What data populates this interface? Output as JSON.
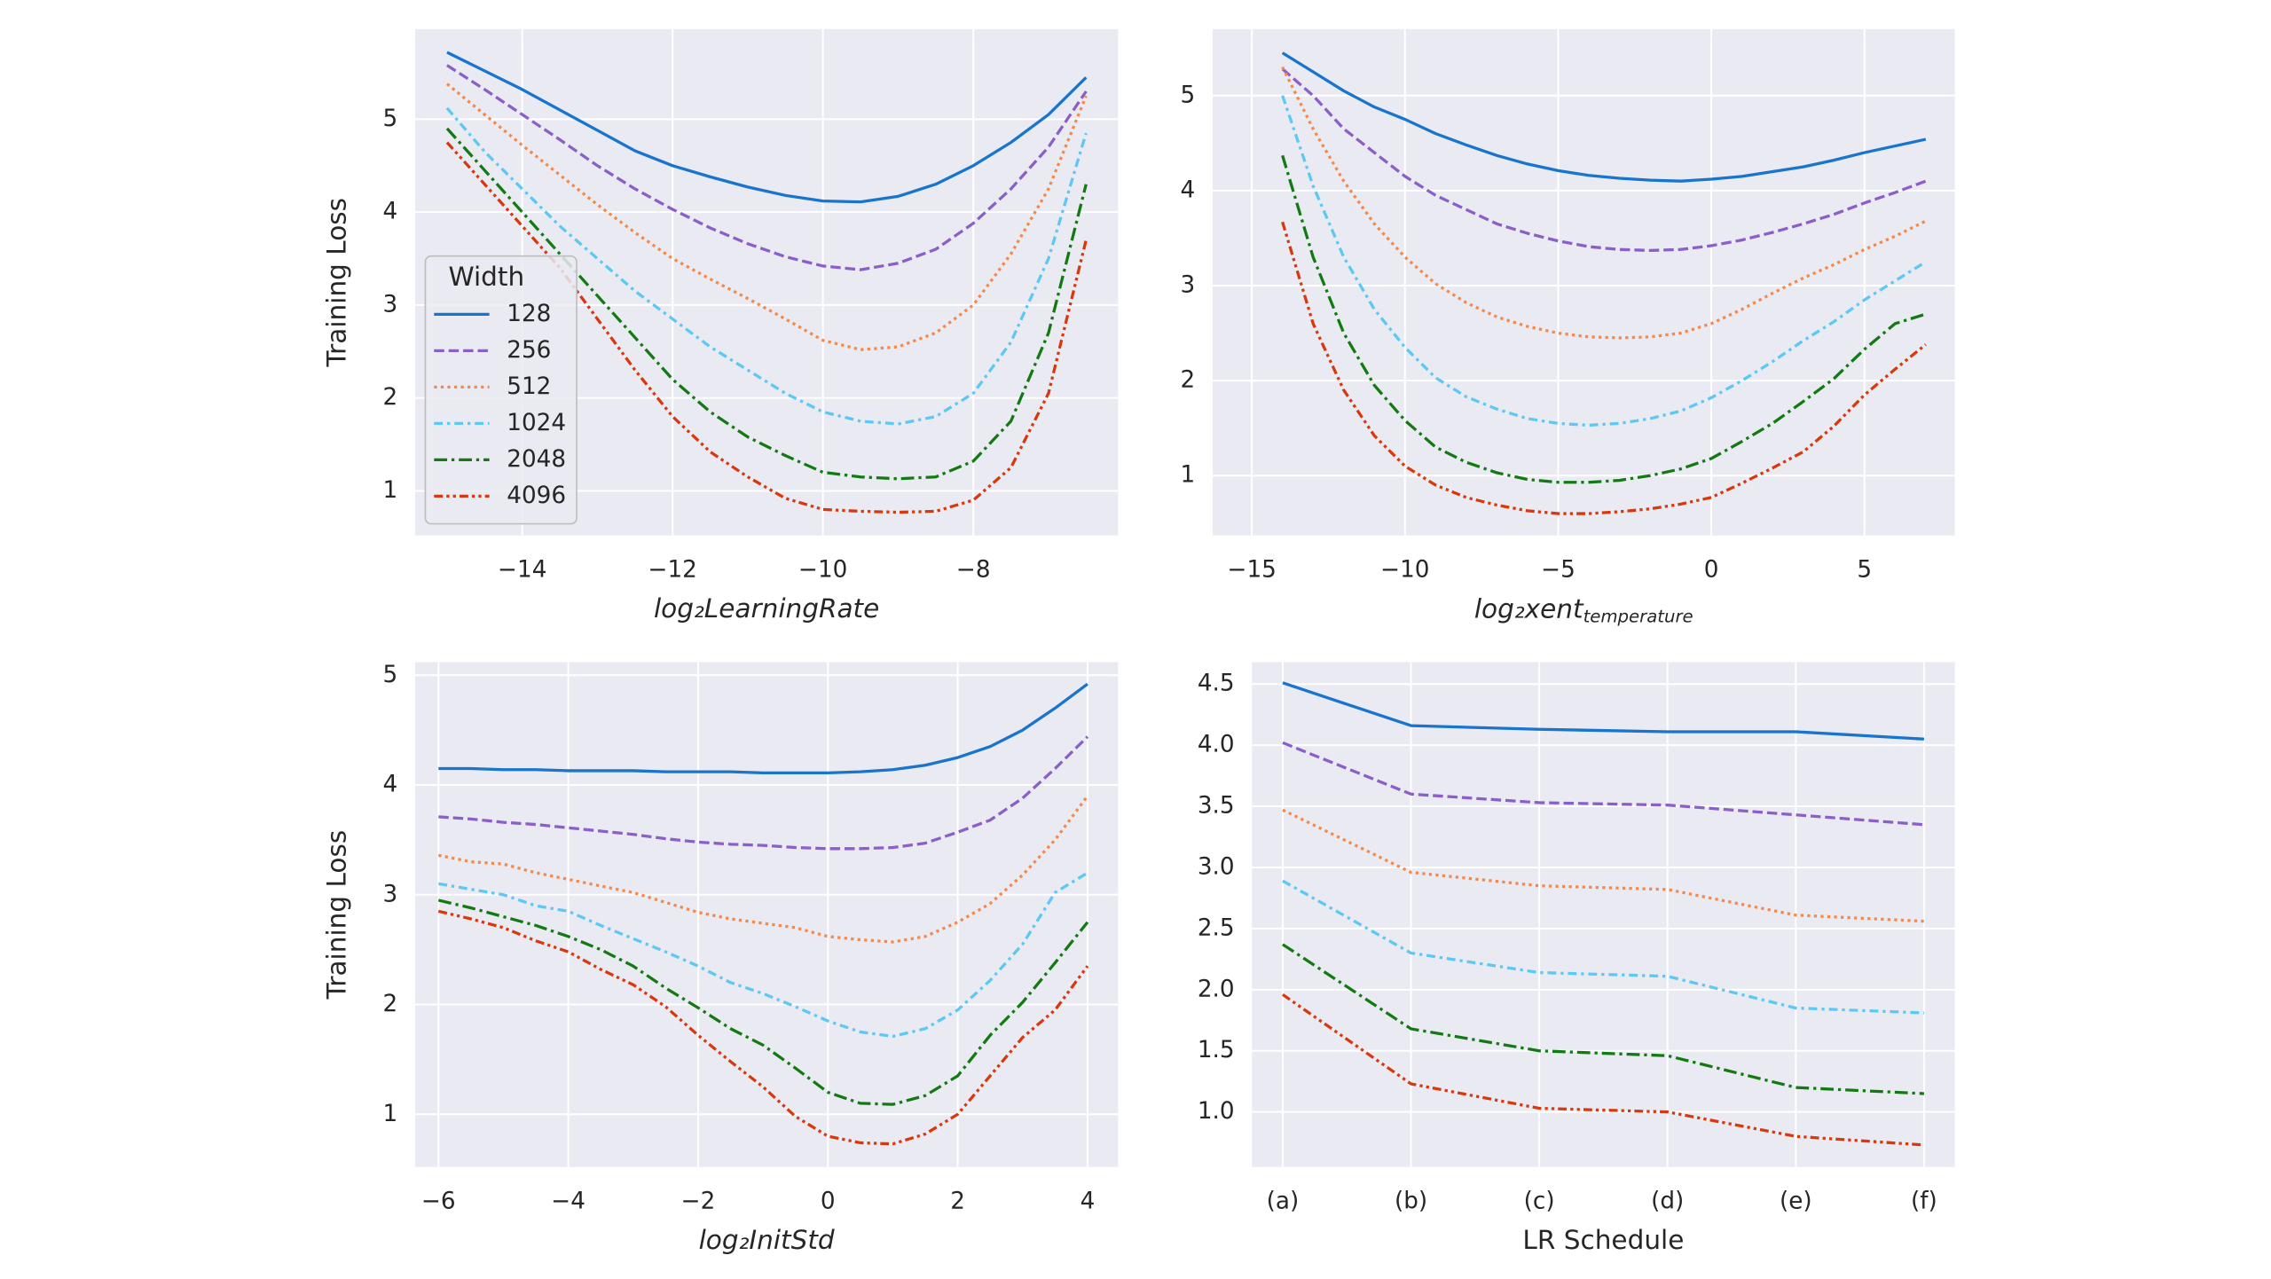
{
  "chart_data": [
    {
      "type": "line",
      "y_label": "Training Loss",
      "x_label": "log₂LearningRate",
      "x": [
        -15,
        -14.5,
        -14,
        -13.5,
        -13,
        -12.5,
        -12,
        -11.5,
        -11,
        -10.5,
        -10,
        -9.5,
        -9,
        -8.5,
        -8,
        -7.5,
        -7,
        -6.5
      ],
      "series": [
        {
          "name": "128",
          "color": "#1874cd",
          "dash": "solid",
          "values": [
            5.72,
            5.52,
            5.32,
            5.1,
            4.88,
            4.66,
            4.5,
            4.38,
            4.27,
            4.18,
            4.12,
            4.11,
            4.17,
            4.3,
            4.5,
            4.75,
            5.05,
            5.45
          ]
        },
        {
          "name": "256",
          "color": "#8a5fc9",
          "dash": "dashed",
          "values": [
            5.58,
            5.32,
            5.05,
            4.78,
            4.5,
            4.25,
            4.03,
            3.83,
            3.66,
            3.52,
            3.42,
            3.38,
            3.45,
            3.6,
            3.88,
            4.25,
            4.7,
            5.3
          ]
        },
        {
          "name": "512",
          "color": "#f5894a",
          "dash": "dotted",
          "values": [
            5.38,
            5.05,
            4.72,
            4.4,
            4.08,
            3.78,
            3.5,
            3.28,
            3.07,
            2.85,
            2.62,
            2.52,
            2.55,
            2.7,
            3.0,
            3.55,
            4.25,
            5.25
          ]
        },
        {
          "name": "1024",
          "color": "#5bc8f5",
          "dash": "dashdot",
          "values": [
            5.12,
            4.65,
            4.25,
            3.85,
            3.5,
            3.15,
            2.85,
            2.55,
            2.3,
            2.05,
            1.85,
            1.75,
            1.72,
            1.8,
            2.05,
            2.6,
            3.5,
            4.85
          ]
        },
        {
          "name": "2048",
          "color": "#137a13",
          "dash": "longdashdot",
          "values": [
            4.9,
            4.45,
            4.0,
            3.55,
            3.1,
            2.65,
            2.2,
            1.85,
            1.58,
            1.38,
            1.2,
            1.15,
            1.13,
            1.15,
            1.32,
            1.75,
            2.7,
            4.3
          ]
        },
        {
          "name": "4096",
          "color": "#d9380d",
          "dash": "dashdotdot",
          "values": [
            4.75,
            4.3,
            3.85,
            3.4,
            2.85,
            2.3,
            1.8,
            1.42,
            1.15,
            0.92,
            0.8,
            0.78,
            0.77,
            0.78,
            0.9,
            1.25,
            2.05,
            3.7
          ]
        }
      ],
      "xlim": [
        -15.425,
        -6.075
      ],
      "ylim": [
        0.52,
        5.97
      ],
      "xticks": [
        {
          "value": -14,
          "label": "−14"
        },
        {
          "value": -12,
          "label": "−12"
        },
        {
          "value": -10,
          "label": "−10"
        },
        {
          "value": -8,
          "label": "−8"
        }
      ],
      "yticks": [
        1,
        2,
        3,
        4,
        5
      ],
      "grid": true,
      "legend": "lower left",
      "legend_title": "Width"
    },
    {
      "type": "line",
      "x_label": {
        "text": "log₂xent",
        "subscript": "temperature"
      },
      "x": [
        -14,
        -13,
        -12,
        -11,
        -10,
        -9,
        -8,
        -7,
        -6,
        -5,
        -4,
        -3,
        -2,
        -1,
        0,
        1,
        2,
        3,
        4,
        5,
        6,
        7
      ],
      "series": [
        {
          "color": "#1874cd",
          "dash": "solid",
          "values": [
            5.45,
            5.25,
            5.05,
            4.88,
            4.75,
            4.6,
            4.48,
            4.37,
            4.28,
            4.21,
            4.16,
            4.13,
            4.11,
            4.1,
            4.12,
            4.15,
            4.2,
            4.25,
            4.32,
            4.4,
            4.47,
            4.54
          ]
        },
        {
          "color": "#8a5fc9",
          "dash": "dashed",
          "values": [
            5.28,
            5.0,
            4.65,
            4.4,
            4.15,
            3.95,
            3.8,
            3.65,
            3.55,
            3.47,
            3.41,
            3.38,
            3.37,
            3.38,
            3.42,
            3.48,
            3.56,
            3.65,
            3.75,
            3.87,
            3.98,
            4.1
          ]
        },
        {
          "color": "#f5894a",
          "dash": "dotted",
          "values": [
            5.3,
            4.65,
            4.1,
            3.65,
            3.3,
            3.02,
            2.82,
            2.67,
            2.57,
            2.5,
            2.46,
            2.45,
            2.46,
            2.5,
            2.6,
            2.75,
            2.92,
            3.08,
            3.22,
            3.38,
            3.52,
            3.68
          ]
        },
        {
          "color": "#5bc8f5",
          "dash": "dashdot",
          "values": [
            5.0,
            4.05,
            3.3,
            2.75,
            2.35,
            2.03,
            1.83,
            1.7,
            1.6,
            1.55,
            1.53,
            1.55,
            1.6,
            1.68,
            1.82,
            2.0,
            2.2,
            2.42,
            2.62,
            2.85,
            3.05,
            3.25
          ]
        },
        {
          "color": "#137a13",
          "dash": "longdashdot",
          "values": [
            4.37,
            3.3,
            2.5,
            1.95,
            1.58,
            1.3,
            1.14,
            1.03,
            0.96,
            0.93,
            0.93,
            0.95,
            1.0,
            1.07,
            1.18,
            1.36,
            1.55,
            1.78,
            2.02,
            2.33,
            2.6,
            2.7
          ]
        },
        {
          "color": "#d9380d",
          "dash": "dashdotdot",
          "values": [
            3.67,
            2.6,
            1.9,
            1.42,
            1.1,
            0.9,
            0.77,
            0.69,
            0.63,
            0.6,
            0.6,
            0.62,
            0.65,
            0.7,
            0.77,
            0.92,
            1.08,
            1.25,
            1.52,
            1.85,
            2.12,
            2.38
          ]
        }
      ],
      "xlim": [
        -16.28,
        7.95
      ],
      "ylim": [
        0.37,
        5.7
      ],
      "xticks": [
        {
          "value": -15,
          "label": "−15"
        },
        {
          "value": -10,
          "label": "−10"
        },
        {
          "value": -5,
          "label": "−5"
        },
        0,
        5
      ],
      "yticks": [
        1,
        2,
        3,
        4,
        5
      ],
      "grid": true
    },
    {
      "type": "line",
      "y_label": "Training Loss",
      "x_label": "log₂InitStd",
      "x": [
        -6,
        -5.5,
        -5,
        -4.5,
        -4,
        -3.5,
        -3,
        -2.5,
        -2,
        -1.5,
        -1,
        -0.5,
        0,
        0.5,
        1,
        1.5,
        2,
        2.5,
        3,
        3.5,
        4
      ],
      "series": [
        {
          "color": "#1874cd",
          "dash": "solid",
          "values": [
            4.15,
            4.15,
            4.14,
            4.14,
            4.13,
            4.13,
            4.13,
            4.12,
            4.12,
            4.12,
            4.11,
            4.11,
            4.11,
            4.12,
            4.14,
            4.18,
            4.25,
            4.35,
            4.5,
            4.7,
            4.92
          ]
        },
        {
          "color": "#8a5fc9",
          "dash": "dashed",
          "values": [
            3.71,
            3.69,
            3.66,
            3.64,
            3.61,
            3.58,
            3.55,
            3.51,
            3.48,
            3.46,
            3.45,
            3.43,
            3.42,
            3.42,
            3.43,
            3.47,
            3.57,
            3.68,
            3.88,
            4.15,
            4.44
          ]
        },
        {
          "color": "#f5894a",
          "dash": "dotted",
          "values": [
            3.36,
            3.3,
            3.28,
            3.2,
            3.14,
            3.08,
            3.02,
            2.93,
            2.84,
            2.78,
            2.74,
            2.7,
            2.62,
            2.59,
            2.57,
            2.62,
            2.75,
            2.92,
            3.18,
            3.5,
            3.9
          ]
        },
        {
          "color": "#5bc8f5",
          "dash": "dashdot",
          "values": [
            3.1,
            3.05,
            3.0,
            2.9,
            2.85,
            2.72,
            2.6,
            2.48,
            2.35,
            2.2,
            2.1,
            1.98,
            1.85,
            1.75,
            1.71,
            1.78,
            1.95,
            2.22,
            2.55,
            3.02,
            3.2
          ]
        },
        {
          "color": "#137a13",
          "dash": "longdashdot",
          "values": [
            2.95,
            2.88,
            2.8,
            2.72,
            2.62,
            2.5,
            2.35,
            2.15,
            1.97,
            1.78,
            1.63,
            1.42,
            1.2,
            1.1,
            1.09,
            1.17,
            1.35,
            1.72,
            2.02,
            2.38,
            2.75
          ]
        },
        {
          "color": "#d9380d",
          "dash": "dashdotdot",
          "values": [
            2.85,
            2.78,
            2.7,
            2.58,
            2.48,
            2.32,
            2.18,
            1.98,
            1.72,
            1.48,
            1.25,
            0.98,
            0.8,
            0.74,
            0.73,
            0.82,
            1.0,
            1.35,
            1.7,
            1.95,
            2.35
          ]
        }
      ],
      "xlim": [
        -6.36,
        4.47
      ],
      "ylim": [
        0.52,
        5.12
      ],
      "xticks": [
        {
          "value": -6,
          "label": "−6"
        },
        {
          "value": -4,
          "label": "−4"
        },
        {
          "value": -2,
          "label": "−2"
        },
        0,
        2,
        4
      ],
      "yticks": [
        1,
        2,
        3,
        4,
        5
      ],
      "grid": true
    },
    {
      "type": "line",
      "x_label": "LR Schedule",
      "categories": [
        "(a)",
        "(b)",
        "(c)",
        "(d)",
        "(e)",
        "(f)"
      ],
      "series": [
        {
          "color": "#1874cd",
          "dash": "solid",
          "values": [
            4.51,
            4.16,
            4.13,
            4.11,
            4.11,
            4.05
          ]
        },
        {
          "color": "#8a5fc9",
          "dash": "dashed",
          "values": [
            4.02,
            3.6,
            3.53,
            3.51,
            3.43,
            3.35
          ]
        },
        {
          "color": "#f5894a",
          "dash": "dotted",
          "values": [
            3.47,
            2.96,
            2.85,
            2.82,
            2.61,
            2.56
          ]
        },
        {
          "color": "#5bc8f5",
          "dash": "dashdot",
          "values": [
            2.89,
            2.3,
            2.14,
            2.11,
            1.85,
            1.81
          ]
        },
        {
          "color": "#137a13",
          "dash": "longdashdot",
          "values": [
            2.37,
            1.68,
            1.5,
            1.46,
            1.2,
            1.15
          ]
        },
        {
          "color": "#d9380d",
          "dash": "dashdotdot",
          "values": [
            1.96,
            1.23,
            1.03,
            1.0,
            0.8,
            0.73
          ]
        }
      ],
      "ylim": [
        0.55,
        4.68
      ],
      "yticks": [
        {
          "value": 1,
          "label": "1.0"
        },
        1.5,
        {
          "value": 2,
          "label": "2.0"
        },
        2.5,
        {
          "value": 3,
          "label": "3.0"
        },
        3.5,
        {
          "value": 4,
          "label": "4.0"
        },
        4.5
      ],
      "grid": true
    }
  ]
}
